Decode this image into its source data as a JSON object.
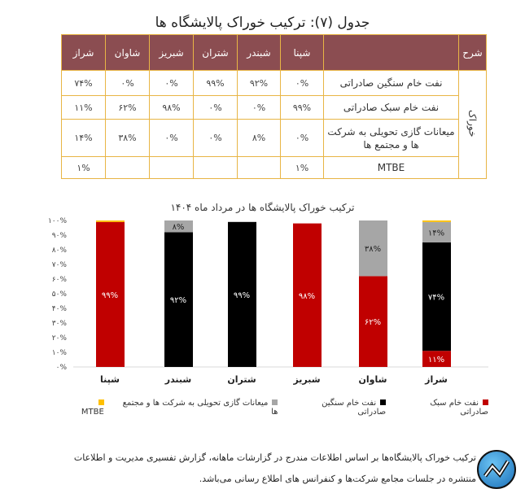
{
  "table": {
    "title": "جدول (۷): ترکیب خوراک پالایشگاه ها",
    "header_sharh": "شرح",
    "group_label": "خوراک",
    "columns": [
      "شپنا",
      "شبندر",
      "شتران",
      "شبریز",
      "شاوان",
      "شراز"
    ],
    "rows": [
      {
        "label": "نفت خام سنگین صادراتی",
        "values": [
          "۰%",
          "۹۲%",
          "۹۹%",
          "۰%",
          "۰%",
          "۷۴%"
        ]
      },
      {
        "label": "نفت خام سبک صادراتی",
        "values": [
          "۹۹%",
          "۰%",
          "۰%",
          "۹۸%",
          "۶۲%",
          "۱۱%"
        ]
      },
      {
        "label": "میعانات گازی تحویلی به شرکت ها و مجتمع ها",
        "values": [
          "۰%",
          "۸%",
          "۰%",
          "۰%",
          "۳۸%",
          "۱۴%"
        ]
      },
      {
        "label": "MTBE",
        "values": [
          "۱%",
          "",
          "",
          "",
          "",
          "۱%"
        ]
      }
    ]
  },
  "chart_data": {
    "type": "bar",
    "stacked": true,
    "title": "ترکیب خوراک پالایشگاه ها در مرداد ماه ۱۴۰۴",
    "categories": [
      "شپنا",
      "شبندر",
      "شتران",
      "شبریز",
      "شاوان",
      "شراز"
    ],
    "yticks": [
      "۰%",
      "۱۰%",
      "۲۰%",
      "۳۰%",
      "۴۰%",
      "۵۰%",
      "۶۰%",
      "۷۰%",
      "۸۰%",
      "۹۰%",
      "۱۰۰%"
    ],
    "ylim": [
      0,
      100
    ],
    "series": [
      {
        "name": "نفت خام سبک صادراتی",
        "color": "#c00000",
        "values": [
          99,
          0,
          0,
          98,
          62,
          11
        ],
        "labels": [
          "۹۹%",
          "",
          "",
          "۹۸%",
          "۶۲%",
          "۱۱%"
        ]
      },
      {
        "name": "نفت خام سنگین صادراتی",
        "color": "#000000",
        "values": [
          0,
          92,
          99,
          0,
          0,
          74
        ],
        "labels": [
          "",
          "۹۲%",
          "۹۹%",
          "",
          "",
          "۷۴%"
        ]
      },
      {
        "name": "میعانات گازی تحویلی به شرکت ها و مجتمع ها",
        "color": "#a6a6a6",
        "values": [
          0,
          8,
          0,
          0,
          38,
          14
        ],
        "labels": [
          "",
          "۸%",
          "",
          "",
          "۳۸%",
          "۱۴%"
        ]
      },
      {
        "name": "MTBE",
        "color": "#ffc000",
        "values": [
          1,
          0,
          0,
          0,
          0,
          1
        ],
        "labels": [
          "",
          "",
          "",
          "",
          "",
          ""
        ]
      }
    ],
    "legend": "bottom"
  },
  "footer": {
    "line1": "ترکیب خوراک پالایشگاه‌ها بر اساس اطلاعات مندرج در گزارشات ماهانه، گزارش تفسیری مدیریت و اطلاعات",
    "line2": "منتشره در جلسات مجامع شرکت‌ها و کنفرانس های اطلاع رسانی می‌باشد."
  }
}
